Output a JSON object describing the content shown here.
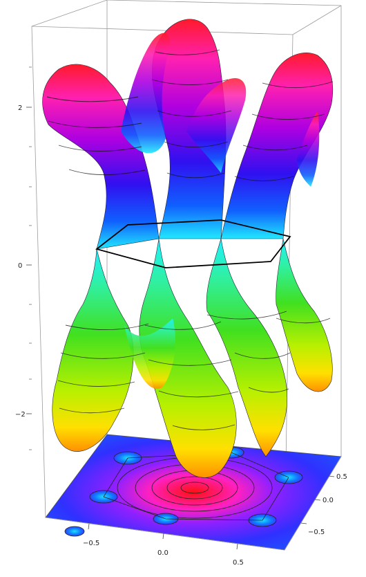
{
  "plot": {
    "type": "3d-surface",
    "z_axis": {
      "tick_labels": [
        "2",
        "0",
        "−2"
      ],
      "range": [
        -3,
        3
      ]
    },
    "kx_axis": {
      "tick_labels": [
        "−0.5",
        "0.0",
        "0.5"
      ],
      "range": [
        -0.8,
        0.8
      ]
    },
    "ky_axis": {
      "tick_labels": [
        "0.5",
        "0.0",
        "−0.5"
      ],
      "range": [
        -0.8,
        0.8
      ]
    },
    "brillouin_zone": "hexagon",
    "colors": {
      "top_peak": "#ff1a1a",
      "top_mid": "#d000d0",
      "top_low": "#2020ff",
      "dirac_cyan": "#20e0ff",
      "bottom_mid": "#30e030",
      "bottom_low": "#f0d000",
      "bottom_trough": "#ff8800"
    }
  }
}
